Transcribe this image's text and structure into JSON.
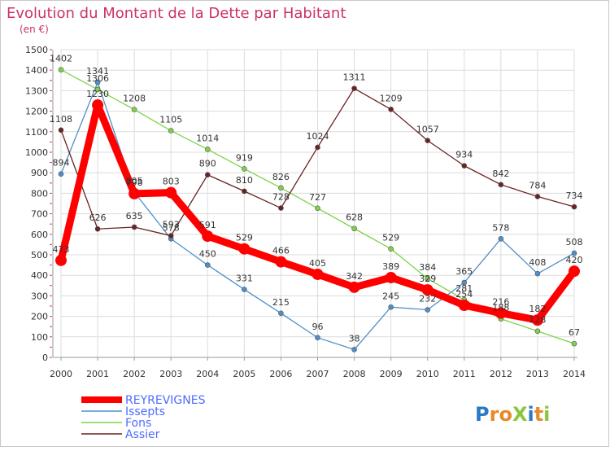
{
  "chart_data": {
    "type": "line",
    "title": "Evolution du Montant de la Dette par Habitant",
    "subtitle": "(en €)",
    "xlabel": "",
    "ylabel": "",
    "ylim": [
      0,
      1500
    ],
    "yticks": [
      0,
      100,
      200,
      300,
      400,
      500,
      600,
      700,
      800,
      900,
      1000,
      1100,
      1200,
      1300,
      1400,
      1500
    ],
    "grid": true,
    "legend_position": "bottom-left",
    "x": [
      "2000",
      "2001",
      "2002",
      "2003",
      "2004",
      "2005",
      "2006",
      "2007",
      "2008",
      "2009",
      "2010",
      "2011",
      "2012",
      "2013",
      "2014"
    ],
    "series": [
      {
        "name": "REYREVIGNES",
        "color": "#ff0000",
        "emphasis": true,
        "values": [
          473,
          1230,
          798,
          803,
          591,
          529,
          466,
          405,
          342,
          389,
          329,
          254,
          216,
          182,
          420
        ]
      },
      {
        "name": "Issepts",
        "color": "#4f8fc8",
        "values": [
          894,
          1341,
          805,
          578,
          450,
          331,
          215,
          96,
          38,
          245,
          232,
          365,
          578,
          408,
          508
        ]
      },
      {
        "name": "Fons",
        "color": "#7ed24a",
        "values": [
          1402,
          1306,
          1208,
          1105,
          1014,
          919,
          826,
          727,
          628,
          529,
          384,
          281,
          188,
          128,
          67
        ]
      },
      {
        "name": "Assier",
        "color": "#6b2222",
        "values": [
          1108,
          626,
          635,
          593,
          890,
          810,
          728,
          1024,
          1311,
          1209,
          1057,
          934,
          842,
          784,
          734
        ]
      }
    ]
  },
  "brand": {
    "logo_text": "ProXiti"
  }
}
